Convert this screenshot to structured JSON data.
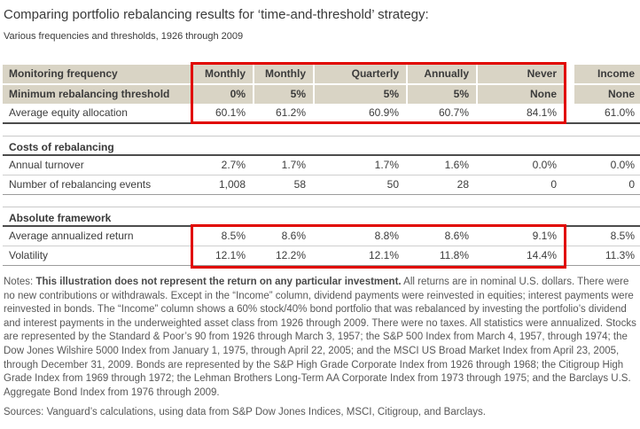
{
  "title": "Comparing portfolio rebalancing results for ‘time-and-threshold’ strategy:",
  "subtitle": "Various frequencies and thresholds, 1926 through 2009",
  "table": {
    "monitoring": {
      "label": "Monitoring frequency",
      "values": [
        "Monthly",
        "Monthly",
        "Quarterly",
        "Annually",
        "Never",
        "Income"
      ]
    },
    "threshold": {
      "label": "Minimum rebalancing threshold",
      "values": [
        "0%",
        "5%",
        "5%",
        "5%",
        "None",
        "None"
      ]
    },
    "equity": {
      "label": "Average equity allocation",
      "values": [
        "60.1%",
        "61.2%",
        "60.9%",
        "60.7%",
        "84.1%",
        "61.0%"
      ]
    },
    "costs_heading": "Costs of rebalancing",
    "turnover": {
      "label": "Annual turnover",
      "values": [
        "2.7%",
        "1.7%",
        "1.7%",
        "1.6%",
        "0.0%",
        "0.0%"
      ]
    },
    "events": {
      "label": "Number of rebalancing events",
      "values": [
        "1,008",
        "58",
        "50",
        "28",
        "0",
        "0"
      ]
    },
    "absolute_heading": "Absolute framework",
    "returns": {
      "label": "Average annualized return",
      "values": [
        "8.5%",
        "8.6%",
        "8.8%",
        "8.6%",
        "9.1%",
        "8.5%"
      ]
    },
    "volatility": {
      "label": "Volatility",
      "values": [
        "12.1%",
        "12.2%",
        "12.1%",
        "11.8%",
        "14.4%",
        "11.3%"
      ]
    }
  },
  "notes": {
    "prefix": "Notes: ",
    "bold": "This illustration does not represent the return on any particular investment.",
    "rest": " All returns are in nominal U.S. dollars. There were no new contributions or withdrawals. Except in the “Income” column, dividend payments were reinvested in equities; interest payments were reinvested in bonds. The “Income” column shows a 60% stock/40% bond portfolio that was rebalanced by investing the portfolio’s dividend and interest payments in the underweighted asset class from 1926 through 2009. There were no taxes. All statistics were annualized. Stocks are represented by the Standard & Poor’s 90 from 1926 through March 3, 1957; the S&P 500 Index from March 4, 1957, through 1974; the Dow Jones Wilshire 5000 Index from January 1, 1975, through April 22, 2005; and the MSCI US Broad Market Index from April 23, 2005, through December 31, 2009. Bonds are represented by the S&P High Grade Corporate Index from 1926 through 1968; the Citigroup High Grade Index from 1969 through 1972; the Lehman Brothers Long-Term AA Corporate Index from 1973 through 1975; and the Barclays U.S. Aggregate Bond Index from 1976 through 2009."
  },
  "sources": "Sources: Vanguard’s calculations, using data from S&P Dow Jones Indices, MSCI, Citigroup, and Barclays.",
  "colors": {
    "header_row_bg": "#d9d4c5",
    "highlight_border": "#e10600",
    "rule_dark": "#4c4c4c",
    "rule_light": "#cfcfcf",
    "rule_medium": "#9c9c9c",
    "text": "#3c3c3c",
    "notes_text": "#585858"
  }
}
